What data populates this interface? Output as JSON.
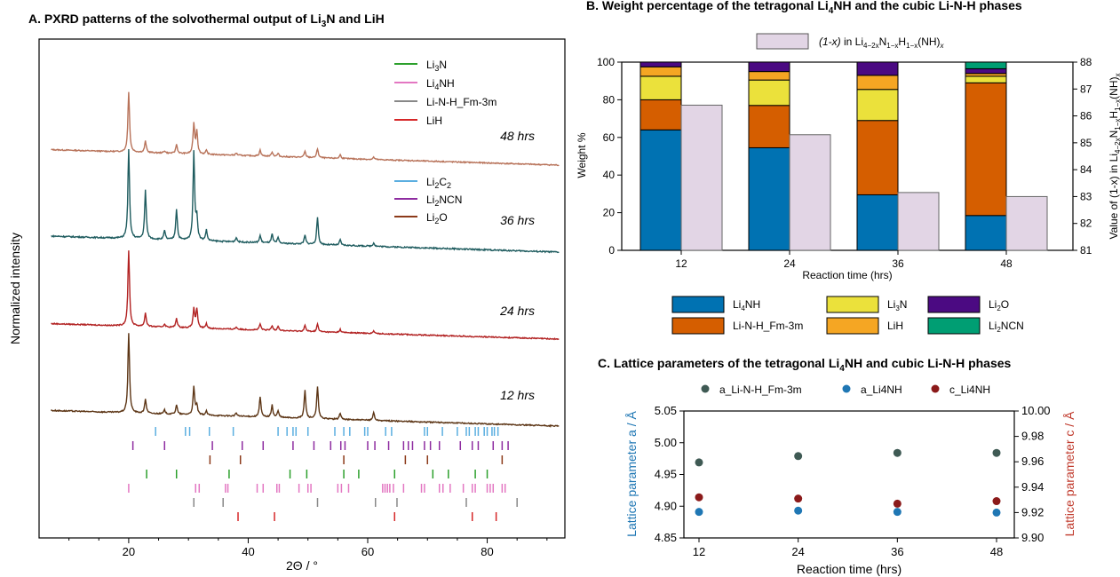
{
  "chart_data": [
    {
      "type": "line",
      "title": "A. PXRD patterns of the solvothermal output of Li3N and LiH",
      "xlabel": "2Θ / °",
      "ylabel": "Normalized intensity",
      "xlim": [
        5,
        93
      ],
      "xticks": [
        20,
        40,
        60,
        80
      ],
      "series": [
        {
          "label": "48 hrs",
          "color": "#b8735a",
          "offset": 3.0
        },
        {
          "label": "36 hrs",
          "color": "#1f5c5f",
          "offset": 2.0
        },
        {
          "label": "24 hrs",
          "color": "#b22222",
          "offset": 1.0
        },
        {
          "label": "12 hrs",
          "color": "#5c3515",
          "offset": 0.0
        }
      ],
      "peaks": {
        "positions": [
          20.0,
          22.8,
          26.0,
          28.0,
          30.9,
          31.4,
          33.0,
          38.0,
          42.0,
          44.0,
          45.0,
          49.5,
          51.6,
          55.4,
          61.0
        ],
        "heights_12h": [
          1.0,
          0.18,
          0.05,
          0.12,
          0.35,
          0.12,
          0.05,
          0.04,
          0.25,
          0.15,
          0.08,
          0.35,
          0.4,
          0.08,
          0.1
        ],
        "heights_24h": [
          1.0,
          0.18,
          0.04,
          0.12,
          0.25,
          0.25,
          0.06,
          0.03,
          0.08,
          0.06,
          0.06,
          0.08,
          0.1,
          0.04,
          0.03
        ],
        "heights_36h": [
          1.0,
          0.55,
          0.1,
          0.35,
          1.0,
          0.25,
          0.12,
          0.05,
          0.08,
          0.1,
          0.06,
          0.1,
          0.3,
          0.06,
          0.04
        ],
        "heights_48h": [
          0.8,
          0.15,
          0.03,
          0.12,
          0.4,
          0.3,
          0.05,
          0.03,
          0.08,
          0.06,
          0.04,
          0.08,
          0.12,
          0.05,
          0.03
        ]
      },
      "legend1": [
        {
          "name": "Li3N",
          "color": "#2ca02c"
        },
        {
          "name": "Li4NH",
          "color": "#e377c2"
        },
        {
          "name": "Li-N-H_Fm-3m",
          "color": "#888888"
        },
        {
          "name": "LiH",
          "color": "#d62728"
        }
      ],
      "legend2": [
        {
          "name": "Li2C2",
          "color": "#5aaee0"
        },
        {
          "name": "Li2NCN",
          "color": "#8e2ca0"
        },
        {
          "name": "Li2O",
          "color": "#8c3a1a"
        }
      ],
      "reference_ticks": [
        {
          "name": "Li2C2",
          "color": "#5aaee0",
          "positions": [
            24.5,
            29.5,
            30.2,
            33.5,
            37.5,
            45.0,
            46.5,
            47.5,
            48.0,
            50.0,
            54.5,
            56.0,
            57.0,
            59.5,
            60.0,
            63.0,
            64.0,
            69.5,
            70.0,
            72.5,
            75.0,
            76.5,
            77.0,
            78.0,
            78.5,
            79.5,
            80.0,
            80.8,
            81.2,
            81.8
          ]
        },
        {
          "name": "Li2NCN",
          "color": "#8e2ca0",
          "positions": [
            20.7,
            26.0,
            34.0,
            39.0,
            42.5,
            47.5,
            51.0,
            53.8,
            55.5,
            56.2,
            60.0,
            61.2,
            63.5,
            66.0,
            66.8,
            67.5,
            69.5,
            70.5,
            72.0,
            75.5,
            77.5,
            78.5,
            81.0,
            82.5,
            83.5
          ]
        },
        {
          "name": "Li2O",
          "color": "#8c3a1a",
          "positions": [
            33.6,
            38.7,
            56.0,
            66.3,
            70.0,
            82.5
          ]
        },
        {
          "name": "Li3N",
          "color": "#2ca02c",
          "positions": [
            23.0,
            28.0,
            36.8,
            47.0,
            49.8,
            56.0,
            58.5,
            64.5,
            70.9,
            73.5,
            78.0,
            80.0
          ]
        },
        {
          "name": "Li4NH",
          "color": "#e377c2",
          "positions": [
            20.0,
            31.2,
            31.8,
            36.2,
            36.6,
            41.5,
            42.5,
            44.8,
            45.2,
            48.5,
            50.0,
            50.5,
            55.0,
            55.6,
            56.8,
            62.5,
            62.9,
            63.3,
            63.7,
            64.3,
            66.0,
            69.0,
            69.5,
            72.0,
            72.6,
            73.8,
            76.0,
            77.5,
            78.0,
            80.0,
            80.5,
            81.0,
            82.5,
            83.0
          ]
        },
        {
          "name": "Li-N-H_Fm-3m",
          "color": "#888888",
          "positions": [
            30.9,
            35.8,
            51.6,
            61.3,
            64.9,
            76.5,
            85.0
          ]
        },
        {
          "name": "LiH",
          "color": "#d62728",
          "positions": [
            38.3,
            44.4,
            64.5,
            77.5,
            81.5
          ]
        }
      ]
    },
    {
      "type": "bar",
      "title": "B. Weight percentage of the tetragonal Li4NH and the cubic Li-N-H phases",
      "xlabel": "Reaction time (hrs)",
      "ylabel": "Weight %",
      "ylabel_right": "Value of (1-x) in Li4−2xN1−xH1−x(NH)x",
      "categories": [
        "12",
        "24",
        "36",
        "48"
      ],
      "ylim": [
        0,
        100
      ],
      "yticks": [
        0,
        20,
        40,
        60,
        80,
        100
      ],
      "ylim_right": [
        81,
        88
      ],
      "yticks_right": [
        81,
        82,
        83,
        84,
        85,
        86,
        87,
        88
      ],
      "stacked_series": [
        {
          "name": "Li4NH",
          "color": "#0072b2",
          "values": [
            64,
            54.5,
            29.5,
            18.5
          ]
        },
        {
          "name": "Li-N-H_Fm-3m",
          "color": "#d55e00",
          "values": [
            16,
            22.5,
            39.5,
            70.5
          ]
        },
        {
          "name": "Li3N",
          "color": "#ebe13b",
          "values": [
            12.5,
            13.5,
            16.5,
            3.5
          ]
        },
        {
          "name": "LiH",
          "color": "#f5a623",
          "values": [
            5,
            4.5,
            7.5,
            1.5
          ]
        },
        {
          "name": "Li2O",
          "color": "#4b0a82",
          "values": [
            2.5,
            5,
            7,
            2.5
          ]
        },
        {
          "name": "Li2NCN",
          "color": "#009e73",
          "values": [
            0,
            0,
            0,
            3.5
          ]
        }
      ],
      "secondary_series": {
        "name": "(1-x) in Li4-2xN1-xH1-x(NH)x",
        "color": "#e2d5e5",
        "values": [
          86.4,
          85.3,
          83.15,
          83.0
        ]
      },
      "legend_top": "(1-x) in Li4−2xN1−xH1−x(NH)x",
      "legend_bottom": [
        "Li4NH",
        "Li3N",
        "Li2O",
        "Li-N-H_Fm-3m",
        "LiH",
        "Li2NCN"
      ]
    },
    {
      "type": "scatter",
      "title": "C. Lattice parameters of the tetragonal Li4NH and cubic Li-N-H phases",
      "xlabel": "Reaction time (hrs)",
      "ylabel": "Lattice parameter a / Å",
      "ylabel_right": "Lattice parameter c / Å",
      "x": [
        12,
        24,
        36,
        48
      ],
      "ylim": [
        4.85,
        5.05
      ],
      "yticks": [
        "4.85",
        "4.90",
        "4.95",
        "5.00",
        "5.05"
      ],
      "ylim_right": [
        9.9,
        10.0
      ],
      "yticks_right": [
        "9.90",
        "9.92",
        "9.94",
        "9.96",
        "9.98",
        "10.00"
      ],
      "series": [
        {
          "name": "a_Li-N-H_Fm-3m",
          "axis": "left",
          "color": "#3f5a54",
          "values": [
            4.969,
            4.979,
            4.984,
            4.984
          ]
        },
        {
          "name": "a_Li4NH",
          "axis": "left",
          "color": "#1f77b4",
          "values": [
            4.891,
            4.893,
            4.891,
            4.89
          ]
        },
        {
          "name": "c_Li4NH",
          "axis": "right",
          "color": "#8b1a1a",
          "values": [
            9.932,
            9.931,
            9.927,
            9.929
          ]
        }
      ]
    }
  ]
}
